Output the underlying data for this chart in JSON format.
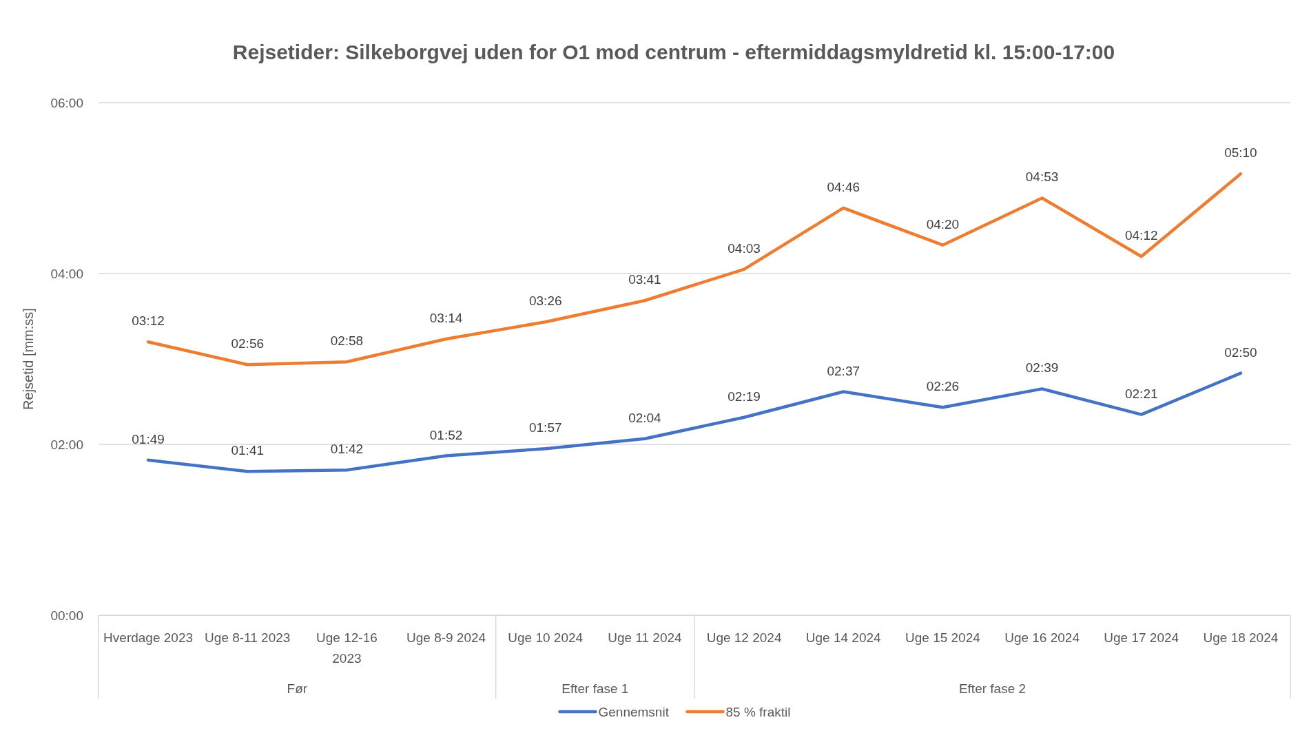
{
  "chart_data": {
    "type": "line",
    "title": "Rejsetider: Silkeborgvej uden for O1 mod centrum - eftermiddagsmyldretid kl. 15:00-17:00",
    "ylabel": "Rejsetid [mm:ss]",
    "categories": [
      "Hverdage 2023",
      "Uge 8-11 2023",
      "Uge 12-16 2023",
      "Uge 8-9 2024",
      "Uge 10 2024",
      "Uge 11 2024",
      "Uge 12 2024",
      "Uge 14 2024",
      "Uge 15 2024",
      "Uge 16 2024",
      "Uge 17 2024",
      "Uge 18 2024"
    ],
    "series": [
      {
        "name": "Gennemsnit",
        "color": "#4472c4",
        "values": [
          109,
          101,
          102,
          112,
          117,
          124,
          139,
          157,
          146,
          159,
          141,
          170
        ],
        "value_labels": [
          "01:49",
          "01:41",
          "01:42",
          "01:52",
          "01:57",
          "02:04",
          "02:19",
          "02:37",
          "02:26",
          "02:39",
          "02:21",
          "02:50"
        ]
      },
      {
        "name": "85 % fraktil",
        "color": "#ed7d31",
        "values": [
          192,
          176,
          178,
          194,
          206,
          221,
          243,
          286,
          260,
          293,
          252,
          310
        ],
        "value_labels": [
          "03:12",
          "02:56",
          "02:58",
          "03:14",
          "03:26",
          "03:41",
          "04:03",
          "04:46",
          "04:20",
          "04:53",
          "04:12",
          "05:10"
        ]
      }
    ],
    "ylim": [
      0,
      360
    ],
    "yticks": [
      {
        "value": 0,
        "label": "00:00"
      },
      {
        "value": 120,
        "label": "02:00"
      },
      {
        "value": 240,
        "label": "04:00"
      },
      {
        "value": 360,
        "label": "06:00"
      }
    ],
    "annotations": [
      "Før",
      "Efter fase 1",
      "Efter fase 2"
    ],
    "grid": "y",
    "legend": "bottom",
    "marker": "none",
    "line_style": "solid"
  }
}
